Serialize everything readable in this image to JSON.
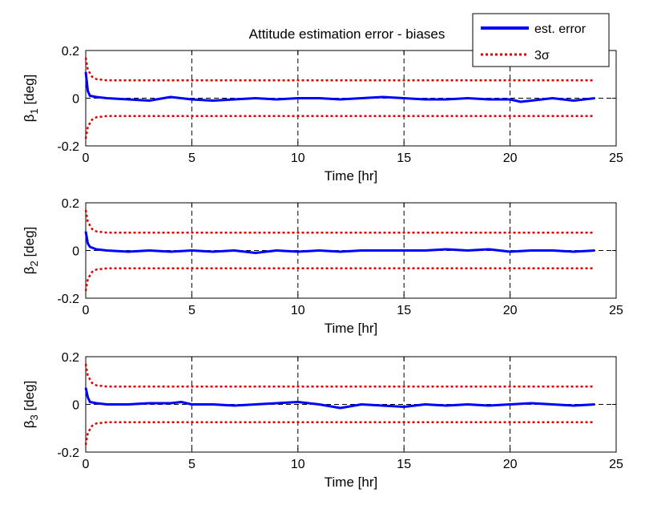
{
  "figure": {
    "title": "Attitude estimation error - biases"
  },
  "legend": {
    "entries": [
      {
        "label": "est. error",
        "color": "#0000ff",
        "style": "solid"
      },
      {
        "label": "3σ",
        "color": "#dd0000",
        "style": "dotted"
      }
    ],
    "placement": "top-right"
  },
  "colors": {
    "est_error": "#0000ff",
    "three_sigma": "#dd0000",
    "gridline": "#000000",
    "zero_line": "#000000"
  },
  "chart_data": [
    {
      "type": "line",
      "title": "Attitude estimation error - biases",
      "xlabel": "Time [hr]",
      "ylabel": {
        "base": "β",
        "sub": "1",
        "unit": " [deg]"
      },
      "xlim": [
        0,
        25
      ],
      "ylim": [
        -0.2,
        0.2
      ],
      "xticks": [
        "0",
        "5",
        "10",
        "15",
        "20",
        "25"
      ],
      "yticks": [
        "0.2",
        "0",
        "-0.2"
      ],
      "grid": "vertical dashed at 5,10,15,20; dashed zero line",
      "series": [
        {
          "name": "est. error",
          "x": [
            0,
            0.1,
            0.2,
            0.5,
            1,
            2,
            3,
            4,
            5,
            6,
            7,
            8,
            9,
            10,
            11,
            12,
            13,
            14,
            15,
            16,
            17,
            18,
            19,
            20,
            20.5,
            21,
            22,
            23,
            24
          ],
          "y": [
            0.11,
            0.03,
            0.01,
            0.005,
            0.0,
            -0.005,
            -0.01,
            0.005,
            -0.005,
            -0.01,
            -0.005,
            0.0,
            -0.005,
            0.0,
            0.0,
            -0.005,
            0.0,
            0.005,
            0.0,
            -0.005,
            -0.005,
            0.0,
            -0.005,
            -0.005,
            -0.015,
            -0.01,
            0.0,
            -0.01,
            0.0
          ]
        },
        {
          "name": "3σ upper",
          "x": [
            0,
            0.1,
            0.3,
            0.5,
            1,
            24
          ],
          "y": [
            0.17,
            0.12,
            0.09,
            0.08,
            0.075,
            0.075
          ]
        },
        {
          "name": "3σ lower",
          "x": [
            0,
            0.1,
            0.3,
            0.5,
            1,
            24
          ],
          "y": [
            -0.17,
            -0.12,
            -0.09,
            -0.08,
            -0.075,
            -0.075
          ]
        }
      ]
    },
    {
      "type": "line",
      "xlabel": "Time [hr]",
      "ylabel": {
        "base": "β",
        "sub": "2",
        "unit": " [deg]"
      },
      "xlim": [
        0,
        25
      ],
      "ylim": [
        -0.2,
        0.2
      ],
      "xticks": [
        "0",
        "5",
        "10",
        "15",
        "20",
        "25"
      ],
      "yticks": [
        "0.2",
        "0",
        "-0.2"
      ],
      "grid": "vertical dashed at 5,10,15,20; dashed zero line",
      "series": [
        {
          "name": "est. error",
          "x": [
            0,
            0.1,
            0.2,
            0.5,
            1,
            2,
            3,
            4,
            5,
            6,
            7,
            8,
            9,
            10,
            11,
            12,
            13,
            14,
            15,
            16,
            17,
            18,
            19,
            20,
            21,
            22,
            23,
            24
          ],
          "y": [
            0.08,
            0.03,
            0.015,
            0.005,
            0.0,
            -0.005,
            0.0,
            -0.005,
            0.0,
            -0.005,
            0.0,
            -0.01,
            0.0,
            -0.005,
            0.0,
            -0.005,
            0.0,
            0.0,
            0.0,
            0.0,
            0.005,
            0.0,
            0.005,
            -0.005,
            0.0,
            0.0,
            -0.005,
            0.0
          ]
        },
        {
          "name": "3σ upper",
          "x": [
            0,
            0.1,
            0.3,
            0.5,
            1,
            24
          ],
          "y": [
            0.17,
            0.12,
            0.09,
            0.08,
            0.075,
            0.075
          ]
        },
        {
          "name": "3σ lower",
          "x": [
            0,
            0.1,
            0.3,
            0.5,
            1,
            24
          ],
          "y": [
            -0.17,
            -0.12,
            -0.09,
            -0.08,
            -0.075,
            -0.075
          ]
        }
      ]
    },
    {
      "type": "line",
      "xlabel": "Time [hr]",
      "ylabel": {
        "base": "β",
        "sub": "3",
        "unit": " [deg]"
      },
      "xlim": [
        0,
        25
      ],
      "ylim": [
        -0.2,
        0.2
      ],
      "xticks": [
        "0",
        "5",
        "10",
        "15",
        "20",
        "25"
      ],
      "yticks": [
        "0.2",
        "0",
        "-0.2"
      ],
      "grid": "vertical dashed at 5,10,15,20; dashed zero line",
      "series": [
        {
          "name": "est. error",
          "x": [
            0,
            0.1,
            0.2,
            0.5,
            1,
            2,
            3,
            4,
            4.5,
            5,
            6,
            7,
            8,
            9,
            10,
            11,
            12,
            13,
            14,
            15,
            16,
            17,
            18,
            19,
            20,
            21,
            22,
            23,
            24
          ],
          "y": [
            0.07,
            0.03,
            0.01,
            0.005,
            0.0,
            0.0,
            0.005,
            0.005,
            0.01,
            0.0,
            0.0,
            -0.005,
            0.0,
            0.005,
            0.01,
            0.0,
            -0.015,
            0.0,
            -0.005,
            -0.01,
            0.0,
            -0.005,
            0.0,
            -0.005,
            0.0,
            0.005,
            0.0,
            -0.005,
            0.0
          ]
        },
        {
          "name": "3σ upper",
          "x": [
            0,
            0.1,
            0.3,
            0.5,
            1,
            24
          ],
          "y": [
            0.17,
            0.12,
            0.09,
            0.08,
            0.075,
            0.075
          ]
        },
        {
          "name": "3σ lower",
          "x": [
            0,
            0.1,
            0.3,
            0.5,
            1,
            24
          ],
          "y": [
            -0.17,
            -0.12,
            -0.09,
            -0.08,
            -0.075,
            -0.075
          ]
        }
      ]
    }
  ]
}
